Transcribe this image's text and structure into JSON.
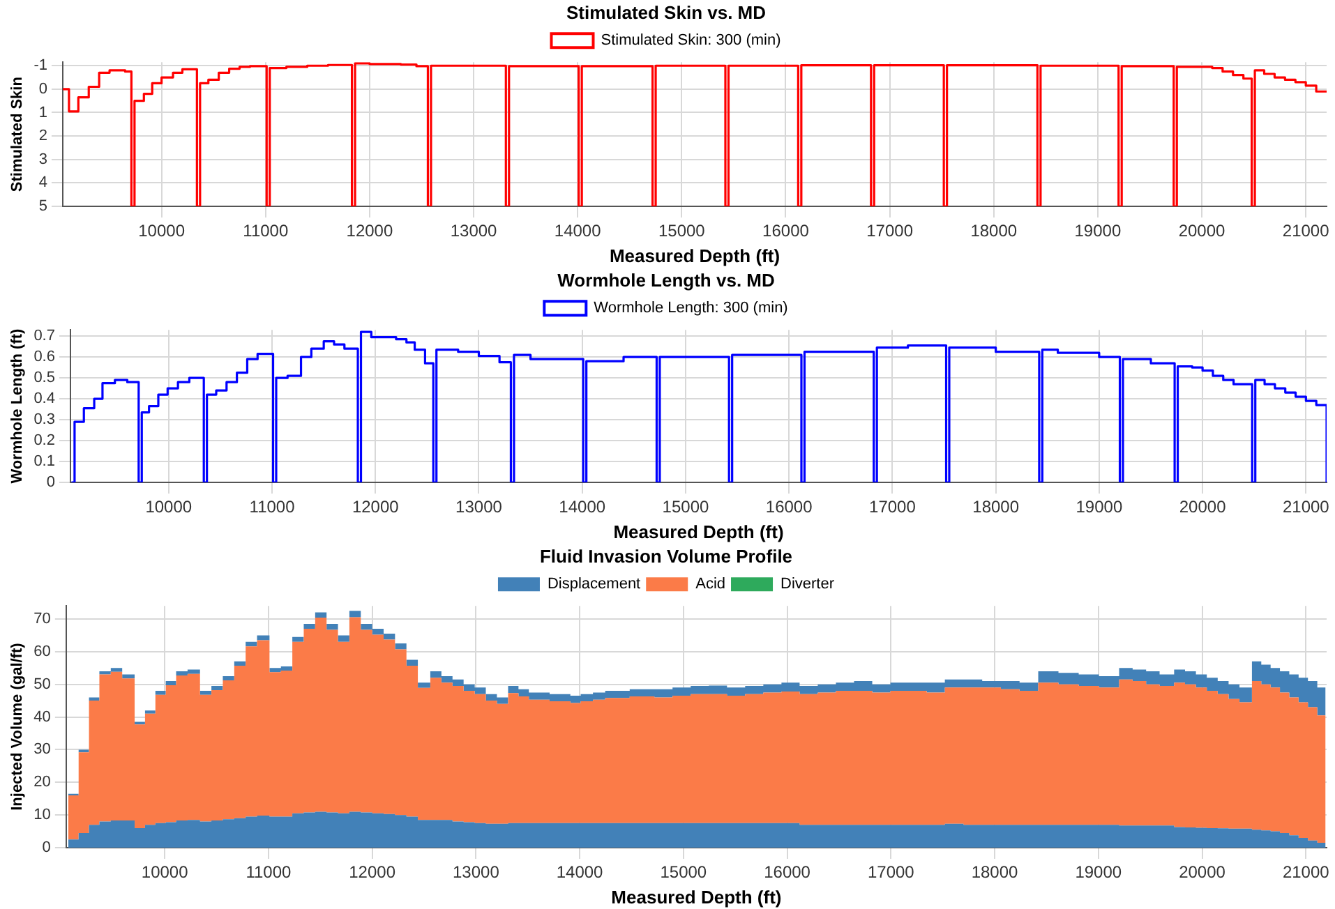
{
  "chart_data": [
    {
      "type": "step",
      "title": "Stimulated Skin vs. MD",
      "xlabel": "Measured Depth (ft)",
      "ylabel": "Stimulated Skin",
      "xlim": [
        9050,
        21200
      ],
      "xticks": [
        10000,
        11000,
        12000,
        13000,
        14000,
        15000,
        16000,
        17000,
        18000,
        19000,
        20000,
        21000
      ],
      "ylim": [
        5,
        -1.15
      ],
      "yticks": [
        -1,
        0,
        1,
        2,
        3,
        4,
        5
      ],
      "grid": true,
      "legend": "top",
      "marker": "none",
      "x": [
        9050,
        9110,
        9200,
        9300,
        9400,
        9500,
        9650,
        9710,
        9740,
        9830,
        9910,
        10000,
        10110,
        10200,
        10340,
        10370,
        10450,
        10550,
        10650,
        10750,
        10850,
        11010,
        11040,
        11200,
        11400,
        11600,
        11830,
        11860,
        12000,
        12300,
        12450,
        12560,
        12590,
        13310,
        13340,
        14010,
        14040,
        14720,
        14750,
        15420,
        15450,
        16120,
        16150,
        16820,
        16850,
        17520,
        17550,
        18420,
        18450,
        19200,
        19230,
        19730,
        19760,
        20100,
        20200,
        20300,
        20400,
        20480,
        20510,
        20600,
        20700,
        20800,
        20900,
        21000,
        21100,
        21200
      ],
      "series": [
        {
          "name": "Stimulated Skin: 300 (min)",
          "color": "#ff0000",
          "values": [
            0,
            0.95,
            0.35,
            -0.1,
            -0.7,
            -0.8,
            -0.75,
            5,
            0.5,
            0.2,
            -0.25,
            -0.5,
            -0.7,
            -0.85,
            5,
            -0.25,
            -0.4,
            -0.7,
            -0.87,
            -0.95,
            -0.98,
            5,
            -0.9,
            -0.95,
            -1.0,
            -1.03,
            5,
            -1.1,
            -1.07,
            -1.05,
            -0.98,
            5,
            -1.0,
            5,
            -0.98,
            5,
            -0.98,
            5,
            -1.0,
            5,
            -1.0,
            5,
            -1.02,
            5,
            -1.02,
            5,
            -1.02,
            5,
            -1.0,
            5,
            -0.98,
            5,
            -0.95,
            -0.9,
            -0.75,
            -0.6,
            -0.45,
            5,
            -0.8,
            -0.65,
            -0.5,
            -0.4,
            -0.3,
            -0.15,
            0.1,
            0.1
          ]
        }
      ]
    },
    {
      "type": "step",
      "title": "Wormhole Length vs. MD",
      "xlabel": "Measured Depth (ft)",
      "ylabel": "Wormhole Length (ft)",
      "xlim": [
        9050,
        21200
      ],
      "xticks": [
        10000,
        11000,
        12000,
        13000,
        14000,
        15000,
        16000,
        17000,
        18000,
        19000,
        20000,
        21000
      ],
      "ylim": [
        0,
        0.73
      ],
      "yticks": [
        0,
        0.1,
        0.2,
        0.3,
        0.4,
        0.5,
        0.6,
        0.7
      ],
      "grid": true,
      "legend": "top",
      "marker": "none",
      "x": [
        9060,
        9090,
        9180,
        9280,
        9360,
        9480,
        9600,
        9710,
        9740,
        9810,
        9900,
        9990,
        10090,
        10200,
        10340,
        10370,
        10460,
        10560,
        10660,
        10760,
        10860,
        11010,
        11040,
        11150,
        11280,
        11380,
        11500,
        11600,
        11700,
        11830,
        11860,
        11960,
        12200,
        12300,
        12380,
        12480,
        12560,
        12590,
        12800,
        13000,
        13200,
        13310,
        13340,
        13500,
        14010,
        14040,
        14400,
        14720,
        14750,
        15420,
        15450,
        16120,
        16150,
        16820,
        16850,
        17150,
        17520,
        17550,
        18000,
        18420,
        18450,
        18600,
        19000,
        19200,
        19230,
        19500,
        19730,
        19760,
        19900,
        20000,
        20100,
        20200,
        20300,
        20480,
        20510,
        20600,
        20700,
        20800,
        20900,
        21000,
        21100,
        21200
      ],
      "series": [
        {
          "name": "Wormhole Length: 300 (min)",
          "color": "#0000ff",
          "values": [
            0,
            0.29,
            0.355,
            0.4,
            0.475,
            0.49,
            0.48,
            0,
            0.335,
            0.365,
            0.42,
            0.45,
            0.48,
            0.5,
            0,
            0.42,
            0.44,
            0.48,
            0.525,
            0.59,
            0.615,
            0,
            0.5,
            0.51,
            0.6,
            0.64,
            0.675,
            0.66,
            0.64,
            0,
            0.72,
            0.695,
            0.685,
            0.67,
            0.635,
            0.57,
            0,
            0.635,
            0.625,
            0.605,
            0.575,
            0,
            0.61,
            0.59,
            0,
            0.58,
            0.6,
            0,
            0.6,
            0,
            0.61,
            0,
            0.625,
            0,
            0.645,
            0.655,
            0,
            0.645,
            0.625,
            0,
            0.635,
            0.62,
            0.6,
            0,
            0.59,
            0.57,
            0,
            0.555,
            0.55,
            0.535,
            0.51,
            0.49,
            0.47,
            0,
            0.49,
            0.47,
            0.45,
            0.43,
            0.41,
            0.39,
            0.37,
            0
          ]
        }
      ]
    },
    {
      "type": "area",
      "stacked": true,
      "title": "Fluid Invasion Volume Profile",
      "xlabel": "Measured Depth (ft)",
      "ylabel": "Injected Volume (gal/ft)",
      "xlim": [
        9050,
        21200
      ],
      "xticks": [
        10000,
        11000,
        12000,
        13000,
        14000,
        15000,
        16000,
        17000,
        18000,
        19000,
        20000,
        21000
      ],
      "ylim": [
        0,
        74
      ],
      "yticks": [
        0,
        10,
        20,
        30,
        40,
        50,
        60,
        70
      ],
      "grid": true,
      "legend": "top",
      "marker": "none",
      "x": [
        9070,
        9170,
        9270,
        9370,
        9480,
        9590,
        9710,
        9810,
        9910,
        10010,
        10110,
        10220,
        10340,
        10450,
        10560,
        10670,
        10780,
        10890,
        11010,
        11120,
        11230,
        11340,
        11450,
        11560,
        11670,
        11780,
        11890,
        12000,
        12110,
        12220,
        12330,
        12440,
        12560,
        12667,
        12774,
        12881,
        12988,
        13095,
        13202,
        13310,
        13410,
        13510,
        13610,
        13710,
        13810,
        13910,
        14010,
        14128,
        14246,
        14364,
        14482,
        14600,
        14720,
        14895,
        15070,
        15245,
        15420,
        15595,
        15770,
        15945,
        16120,
        16295,
        16470,
        16645,
        16820,
        16995,
        17170,
        17345,
        17520,
        17700,
        17880,
        18060,
        18240,
        18420,
        18615,
        18810,
        19005,
        19200,
        19330,
        19460,
        19590,
        19730,
        19835,
        19940,
        20045,
        20150,
        20255,
        20360,
        20480,
        20570,
        20660,
        20750,
        20840,
        20930,
        21020,
        21110,
        21190
      ],
      "series": [
        {
          "name": "Displacement",
          "color": "#4281b8",
          "values": [
            2.5,
            4.5,
            7,
            8,
            8.3,
            8.3,
            6,
            7,
            7.5,
            7.8,
            8.3,
            8.5,
            8,
            8.3,
            8.7,
            9,
            9.5,
            9.8,
            9.5,
            9.5,
            10.5,
            10.8,
            11,
            10.8,
            10.5,
            11,
            10.8,
            10.5,
            10.3,
            10,
            9.5,
            8.5,
            8.5,
            8.5,
            8,
            7.8,
            7.5,
            7.3,
            7.3,
            7.5,
            7.5,
            7.5,
            7.5,
            7.5,
            7.5,
            7.5,
            7.5,
            7.5,
            7.5,
            7.5,
            7.5,
            7.5,
            7.5,
            7.5,
            7.5,
            7.5,
            7.5,
            7.5,
            7.5,
            7.5,
            7,
            7,
            7,
            7,
            7,
            7,
            7,
            7,
            7.3,
            7,
            7,
            7,
            7,
            7,
            7,
            7,
            7,
            6.8,
            6.8,
            6.8,
            6.8,
            6.3,
            6.2,
            6.1,
            6,
            5.9,
            5.8,
            5.8,
            5.5,
            5.3,
            5,
            4.5,
            3.8,
            3,
            2.2,
            1.5,
            1.5
          ]
        },
        {
          "name": "Acid",
          "color": "#fb7b48",
          "values": [
            13.5,
            24.7,
            38,
            45,
            45.5,
            43.5,
            31.7,
            34,
            39.3,
            41.9,
            44.4,
            44.7,
            38.8,
            39.9,
            42.5,
            46.7,
            52.1,
            53.7,
            44.2,
            44.7,
            52.5,
            56.2,
            59.4,
            55.9,
            52.5,
            59.5,
            55.9,
            54.7,
            53.4,
            50.7,
            46.2,
            40.4,
            43.5,
            42,
            41.5,
            40.2,
            39.5,
            37.7,
            36.7,
            39.8,
            38.8,
            37.8,
            37.8,
            37.3,
            37.3,
            36.8,
            37.3,
            37.8,
            38.3,
            38.3,
            38.8,
            38.8,
            38.5,
            39,
            39.5,
            39.5,
            39,
            39.5,
            40,
            40.3,
            40,
            40.5,
            41,
            41,
            40.5,
            41,
            41,
            40.5,
            41.7,
            42,
            42,
            41.5,
            41,
            43.5,
            43,
            42.5,
            42,
            44.7,
            44.2,
            43.2,
            42.7,
            44.2,
            43.8,
            42.9,
            42,
            41.1,
            39.7,
            38.7,
            45.5,
            44.7,
            44,
            43,
            42.2,
            41.5,
            40.8,
            39,
            39
          ]
        },
        {
          "color": "#4281b8",
          "values": [
            0.5,
            0.8,
            1,
            1,
            1.2,
            1.2,
            0.8,
            1,
            1.2,
            1.3,
            1.3,
            1.3,
            1.2,
            1.3,
            1.3,
            1.3,
            1.4,
            1.5,
            1.3,
            1.3,
            1.5,
            1.5,
            1.6,
            1.8,
            2,
            2,
            1.8,
            1.8,
            1.8,
            1.8,
            1.8,
            1.6,
            2,
            2,
            2,
            2,
            2,
            2,
            2,
            2.2,
            2.2,
            2.2,
            2.2,
            2.2,
            2.2,
            2.2,
            2.2,
            2.2,
            2.2,
            2.2,
            2.2,
            2.2,
            2.5,
            2.5,
            2.5,
            2.6,
            2.5,
            2.5,
            2.5,
            2.7,
            2.5,
            2.5,
            2.5,
            3,
            2.5,
            2.5,
            2.5,
            3,
            2.5,
            2.5,
            2,
            2.5,
            2.5,
            3.5,
            3.5,
            3.5,
            3.5,
            3.5,
            3.5,
            4,
            3.5,
            4,
            4,
            4,
            4,
            4,
            4.5,
            4.5,
            6,
            6,
            6,
            6.5,
            7,
            7.5,
            8,
            8.5,
            8.5
          ]
        },
        {
          "name": "Diverter",
          "color": "#2eaa5c",
          "values": [
            null,
            null,
            null,
            null,
            null,
            null,
            null,
            null,
            null,
            null,
            null,
            null,
            null,
            null,
            null,
            null,
            null,
            null,
            null,
            null,
            null,
            null,
            null,
            null,
            null,
            null,
            null,
            null,
            null,
            null,
            null,
            null,
            null,
            null,
            null,
            null,
            null,
            null,
            null,
            null,
            null,
            null,
            null,
            null,
            null,
            null,
            null,
            null,
            null,
            null,
            null,
            null,
            null,
            null,
            null,
            null,
            null,
            null,
            null,
            null,
            null,
            null,
            null,
            null,
            null,
            null,
            null,
            null,
            null,
            null,
            null,
            null,
            null,
            null,
            null,
            null,
            null,
            null,
            null,
            null,
            null,
            null,
            null,
            null,
            null,
            null,
            null,
            null,
            null,
            null,
            null,
            null,
            null,
            null,
            null,
            null,
            null
          ]
        }
      ]
    }
  ]
}
